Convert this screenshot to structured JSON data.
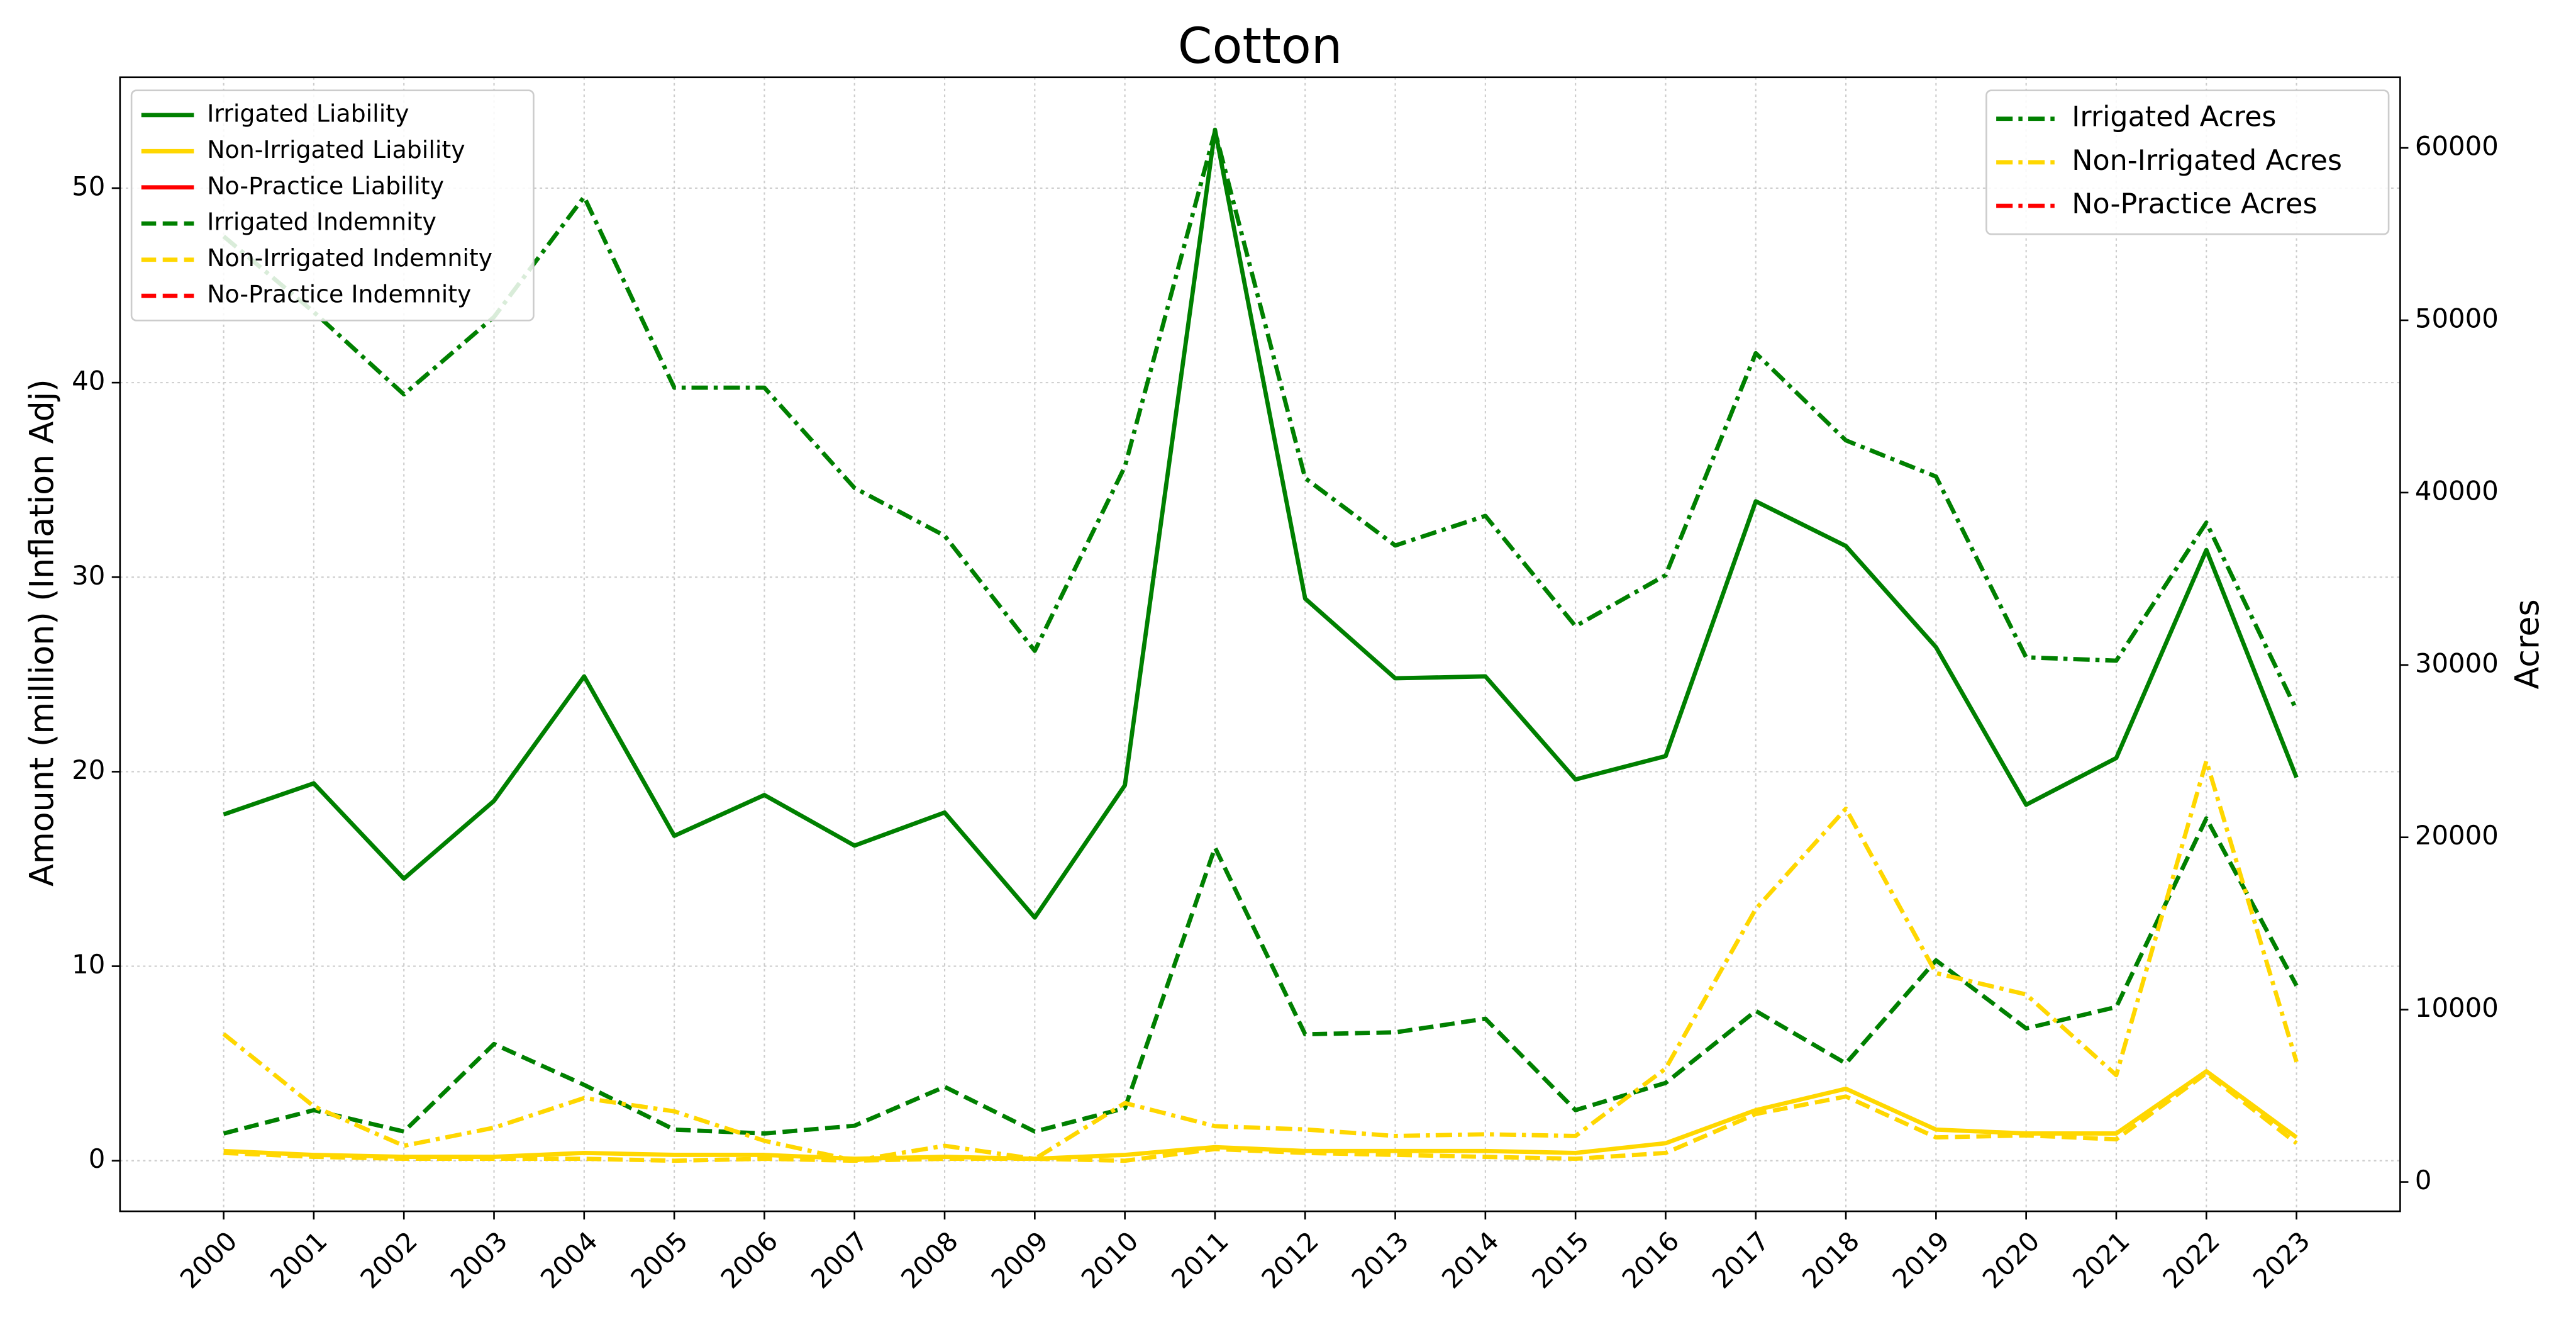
{
  "chart_data": {
    "type": "line",
    "title": "Cotton",
    "ylabel": "Amount (million) (Inflation Adj)",
    "y2label": "Acres",
    "categories": [
      "2000",
      "2001",
      "2002",
      "2003",
      "2004",
      "2005",
      "2006",
      "2007",
      "2008",
      "2009",
      "2010",
      "2011",
      "2012",
      "2013",
      "2014",
      "2015",
      "2016",
      "2017",
      "2018",
      "2019",
      "2020",
      "2021",
      "2022",
      "2023"
    ],
    "ylim": [
      -2.6,
      55.7
    ],
    "yticks": [
      0,
      10,
      20,
      30,
      40,
      50
    ],
    "y2lim": [
      -1700,
      64100
    ],
    "y2ticks": [
      0,
      10000,
      20000,
      30000,
      40000,
      50000,
      60000
    ],
    "grid": true,
    "legend": "upper left",
    "legend2": "upper right",
    "series": [
      {
        "name": "Irrigated Liability",
        "color": "#008000",
        "dash": "solid",
        "values": [
          17.8,
          19.4,
          14.5,
          18.5,
          24.9,
          16.7,
          18.8,
          16.2,
          17.9,
          12.5,
          19.3,
          53.0,
          28.9,
          24.8,
          24.9,
          19.6,
          20.8,
          33.9,
          31.6,
          26.4,
          18.3,
          20.7,
          31.4,
          19.7
        ]
      },
      {
        "name": "Non-Irrigated Liability",
        "color": "#ffd700",
        "dash": "solid",
        "values": [
          0.5,
          0.3,
          0.2,
          0.2,
          0.4,
          0.3,
          0.3,
          0.1,
          0.2,
          0.1,
          0.3,
          0.7,
          0.5,
          0.5,
          0.5,
          0.4,
          0.9,
          2.6,
          3.7,
          1.6,
          1.4,
          1.4,
          4.6,
          1.2
        ]
      },
      {
        "name": "No-Practice Liability",
        "color": "#ff0000",
        "dash": "solid",
        "values": [
          null,
          null,
          null,
          null,
          null,
          null,
          null,
          null,
          null,
          null,
          null,
          null,
          null,
          null,
          null,
          null,
          null,
          null,
          null,
          null,
          null,
          null,
          null,
          null
        ]
      },
      {
        "name": "Irrigated Indemnity",
        "color": "#008000",
        "dash": "dashed",
        "values": [
          1.4,
          2.6,
          1.5,
          6.0,
          3.9,
          1.6,
          1.4,
          1.8,
          3.8,
          1.5,
          2.7,
          16.1,
          6.5,
          6.6,
          7.3,
          2.6,
          4.0,
          7.7,
          5.0,
          10.3,
          6.8,
          7.9,
          17.6,
          9.0
        ]
      },
      {
        "name": "Non-Irrigated Indemnity",
        "color": "#ffd700",
        "dash": "dashed",
        "values": [
          0.4,
          0.2,
          0.1,
          0.1,
          0.1,
          0.0,
          0.1,
          0.0,
          0.1,
          0.1,
          0.0,
          0.6,
          0.4,
          0.3,
          0.2,
          0.1,
          0.4,
          2.4,
          3.3,
          1.2,
          1.3,
          1.1,
          4.5,
          0.9
        ]
      },
      {
        "name": "No-Practice Indemnity",
        "color": "#ff0000",
        "dash": "dashed",
        "values": [
          null,
          null,
          null,
          null,
          null,
          null,
          null,
          null,
          null,
          null,
          null,
          null,
          null,
          null,
          null,
          null,
          null,
          null,
          null,
          null,
          null,
          null,
          null,
          null
        ]
      },
      {
        "name": "Irrigated Acres",
        "color": "#008000",
        "dash": "dashdot",
        "axis": "y2",
        "values": [
          54870,
          50480,
          45700,
          50190,
          57160,
          46090,
          46090,
          40270,
          37500,
          30820,
          41510,
          60970,
          40840,
          36930,
          38650,
          32250,
          35210,
          48090,
          43030,
          40930,
          30440,
          30250,
          38260,
          27390
        ]
      },
      {
        "name": "Non-Irrigated Acres",
        "color": "#ffd700",
        "dash": "dashdot",
        "axis": "y2",
        "values": [
          8590,
          4390,
          2100,
          3150,
          4870,
          4100,
          2390,
          1240,
          2100,
          1340,
          4580,
          3240,
          3050,
          2670,
          2770,
          2670,
          6580,
          15840,
          21660,
          12120,
          10880,
          6200,
          24430,
          6970
        ]
      },
      {
        "name": "No-Practice Acres",
        "color": "#ff0000",
        "dash": "dashdot",
        "axis": "y2",
        "values": [
          null,
          null,
          null,
          null,
          null,
          null,
          null,
          null,
          null,
          null,
          null,
          null,
          null,
          null,
          null,
          null,
          null,
          null,
          null,
          null,
          null,
          null,
          null,
          null
        ]
      }
    ]
  }
}
